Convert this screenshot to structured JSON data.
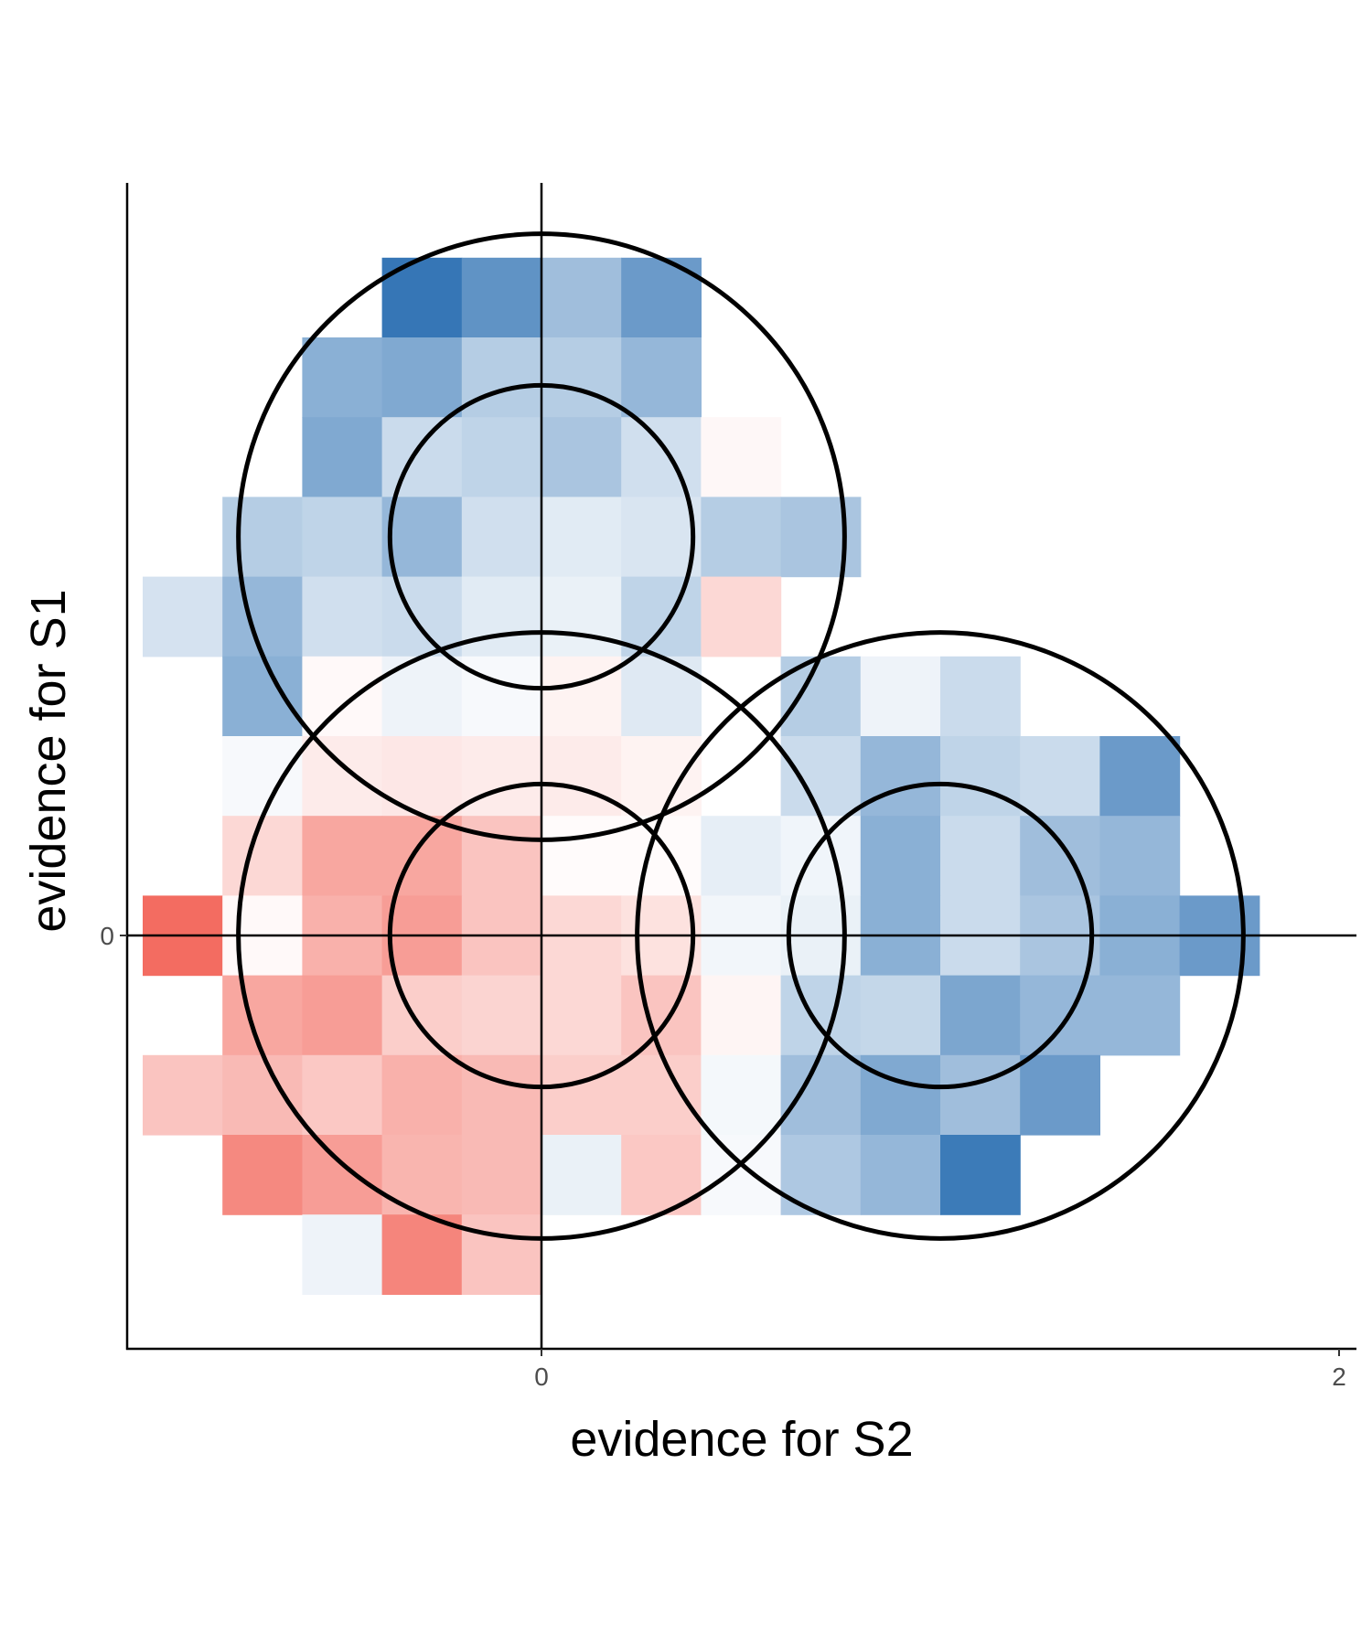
{
  "chart_data": {
    "type": "heatmap",
    "title": "",
    "xlabel": "evidence for S2",
    "ylabel": "evidence for S1",
    "x_ticks": [
      {
        "value": 0,
        "label": "0"
      },
      {
        "value": 2,
        "label": "2"
      }
    ],
    "y_ticks": [
      {
        "value": 0,
        "label": "0"
      }
    ],
    "xlim": [
      -1.04,
      2.04
    ],
    "ylim": [
      -1.04,
      1.9
    ],
    "grid": false,
    "reference_lines": {
      "x": 0,
      "y": 0
    },
    "cell_size": 0.2,
    "colors": {
      "red": "#ef3b2c",
      "white": "#ffffff",
      "blue": "#2b6fb2",
      "lines": "#000000"
    },
    "cells": [
      [
        -0.3,
        1.6,
        0.95
      ],
      [
        -0.1,
        1.6,
        0.75
      ],
      [
        0.1,
        1.6,
        0.45
      ],
      [
        0.3,
        1.6,
        0.7
      ],
      [
        -0.5,
        1.4,
        0.55
      ],
      [
        -0.3,
        1.4,
        0.6
      ],
      [
        -0.1,
        1.4,
        0.35
      ],
      [
        0.1,
        1.4,
        0.35
      ],
      [
        0.3,
        1.4,
        0.5
      ],
      [
        -0.5,
        1.2,
        0.6
      ],
      [
        -0.3,
        1.2,
        0.25
      ],
      [
        -0.1,
        1.2,
        0.3
      ],
      [
        0.1,
        1.2,
        0.4
      ],
      [
        0.3,
        1.2,
        0.22
      ],
      [
        0.5,
        1.2,
        -0.04
      ],
      [
        -0.7,
        1.0,
        0.35
      ],
      [
        -0.5,
        1.0,
        0.3
      ],
      [
        -0.3,
        1.0,
        0.5
      ],
      [
        -0.1,
        1.0,
        0.22
      ],
      [
        0.1,
        1.0,
        0.14
      ],
      [
        0.3,
        1.0,
        0.18
      ],
      [
        0.5,
        1.0,
        0.35
      ],
      [
        0.7,
        1.0,
        0.4
      ],
      [
        -0.9,
        0.8,
        0.2
      ],
      [
        -0.7,
        0.8,
        0.5
      ],
      [
        -0.5,
        0.8,
        0.22
      ],
      [
        -0.3,
        0.8,
        0.25
      ],
      [
        -0.1,
        0.8,
        0.14
      ],
      [
        0.1,
        0.8,
        0.1
      ],
      [
        0.3,
        0.8,
        0.3
      ],
      [
        0.5,
        0.8,
        -0.2
      ],
      [
        -0.7,
        0.6,
        0.55
      ],
      [
        -0.5,
        0.6,
        -0.03
      ],
      [
        -0.3,
        0.6,
        0.08
      ],
      [
        -0.1,
        0.6,
        0.04
      ],
      [
        0.1,
        0.6,
        -0.06
      ],
      [
        0.3,
        0.6,
        0.15
      ],
      [
        0.7,
        0.6,
        0.35
      ],
      [
        0.9,
        0.6,
        0.08
      ],
      [
        1.1,
        0.6,
        0.25
      ],
      [
        -0.7,
        0.4,
        0.04
      ],
      [
        -0.5,
        0.4,
        -0.1
      ],
      [
        -0.3,
        0.4,
        -0.12
      ],
      [
        -0.1,
        0.4,
        -0.1
      ],
      [
        0.1,
        0.4,
        -0.1
      ],
      [
        0.3,
        0.4,
        -0.06
      ],
      [
        0.7,
        0.4,
        0.25
      ],
      [
        0.9,
        0.4,
        0.5
      ],
      [
        1.1,
        0.4,
        0.3
      ],
      [
        1.3,
        0.4,
        0.25
      ],
      [
        1.5,
        0.4,
        0.7
      ],
      [
        -0.7,
        0.2,
        -0.2
      ],
      [
        -0.5,
        0.2,
        -0.45
      ],
      [
        -0.3,
        0.2,
        -0.45
      ],
      [
        -0.1,
        0.2,
        -0.3
      ],
      [
        0.1,
        0.2,
        -0.02
      ],
      [
        0.3,
        0.2,
        -0.02
      ],
      [
        0.5,
        0.2,
        0.12
      ],
      [
        0.7,
        0.2,
        0.07
      ],
      [
        0.9,
        0.2,
        0.55
      ],
      [
        1.1,
        0.2,
        0.25
      ],
      [
        1.3,
        0.2,
        0.45
      ],
      [
        1.5,
        0.2,
        0.5
      ],
      [
        -0.9,
        0.0,
        -0.75
      ],
      [
        -0.7,
        0.0,
        -0.03
      ],
      [
        -0.5,
        0.0,
        -0.4
      ],
      [
        -0.3,
        0.0,
        -0.5
      ],
      [
        -0.1,
        0.0,
        -0.3
      ],
      [
        0.1,
        0.0,
        -0.2
      ],
      [
        0.3,
        0.0,
        -0.15
      ],
      [
        0.5,
        0.0,
        0.06
      ],
      [
        0.7,
        0.0,
        0.1
      ],
      [
        0.9,
        0.0,
        0.55
      ],
      [
        1.1,
        0.0,
        0.25
      ],
      [
        1.3,
        0.0,
        0.4
      ],
      [
        1.5,
        0.0,
        0.55
      ],
      [
        1.7,
        0.0,
        0.7
      ],
      [
        -0.7,
        -0.2,
        -0.45
      ],
      [
        -0.5,
        -0.2,
        -0.5
      ],
      [
        -0.3,
        -0.2,
        -0.25
      ],
      [
        -0.1,
        -0.2,
        -0.22
      ],
      [
        0.1,
        -0.2,
        -0.2
      ],
      [
        0.3,
        -0.2,
        -0.3
      ],
      [
        0.5,
        -0.2,
        -0.05
      ],
      [
        0.7,
        -0.2,
        0.3
      ],
      [
        0.9,
        -0.2,
        0.28
      ],
      [
        1.1,
        -0.2,
        0.62
      ],
      [
        1.3,
        -0.2,
        0.5
      ],
      [
        1.5,
        -0.2,
        0.5
      ],
      [
        -0.9,
        -0.4,
        -0.3
      ],
      [
        -0.7,
        -0.4,
        -0.35
      ],
      [
        -0.5,
        -0.4,
        -0.28
      ],
      [
        -0.3,
        -0.4,
        -0.4
      ],
      [
        -0.1,
        -0.4,
        -0.35
      ],
      [
        0.1,
        -0.4,
        -0.25
      ],
      [
        0.3,
        -0.4,
        -0.25
      ],
      [
        0.5,
        -0.4,
        0.05
      ],
      [
        0.7,
        -0.4,
        0.45
      ],
      [
        0.9,
        -0.4,
        0.6
      ],
      [
        1.1,
        -0.4,
        0.45
      ],
      [
        1.3,
        -0.4,
        0.7
      ],
      [
        -0.7,
        -0.6,
        -0.6
      ],
      [
        -0.5,
        -0.6,
        -0.5
      ],
      [
        -0.3,
        -0.6,
        -0.38
      ],
      [
        -0.1,
        -0.6,
        -0.35
      ],
      [
        0.1,
        -0.6,
        0.1
      ],
      [
        0.3,
        -0.6,
        -0.28
      ],
      [
        0.5,
        -0.6,
        0.04
      ],
      [
        0.7,
        -0.6,
        0.38
      ],
      [
        0.9,
        -0.6,
        0.5
      ],
      [
        1.1,
        -0.6,
        0.92
      ],
      [
        -0.5,
        -0.8,
        0.08
      ],
      [
        -0.3,
        -0.8,
        -0.62
      ],
      [
        -0.1,
        -0.8,
        -0.3
      ]
    ],
    "circles": [
      {
        "cx": 0,
        "cy": 1,
        "r": [
          0.38,
          0.76
        ]
      },
      {
        "cx": 0,
        "cy": 0,
        "r": [
          0.38,
          0.76
        ]
      },
      {
        "cx": 1,
        "cy": 0,
        "r": [
          0.38,
          0.76
        ]
      }
    ]
  }
}
